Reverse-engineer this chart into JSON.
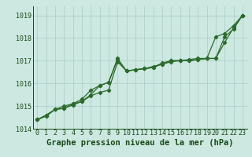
{
  "title": "Graphe pression niveau de la mer (hPa)",
  "x_values": [
    0,
    1,
    2,
    3,
    4,
    5,
    6,
    7,
    8,
    9,
    10,
    11,
    12,
    13,
    14,
    15,
    16,
    17,
    18,
    19,
    20,
    21,
    22,
    23
  ],
  "line1": [
    1014.4,
    1014.55,
    1014.85,
    1014.9,
    1015.05,
    1015.2,
    1015.45,
    1015.6,
    1015.7,
    1016.95,
    1016.55,
    1016.6,
    1016.65,
    1016.75,
    1016.85,
    1017.0,
    1017.0,
    1017.0,
    1017.05,
    1017.1,
    1018.05,
    1018.2,
    1018.55,
    1019.0
  ],
  "line2": [
    1014.4,
    1014.6,
    1014.85,
    1015.0,
    1015.1,
    1015.3,
    1015.7,
    1015.9,
    1016.05,
    1017.05,
    1016.55,
    1016.6,
    1016.65,
    1016.7,
    1016.85,
    1016.95,
    1017.0,
    1017.0,
    1017.05,
    1017.1,
    1017.1,
    1017.8,
    1018.45,
    1019.0
  ],
  "line3": [
    1014.4,
    1014.6,
    1014.85,
    1014.9,
    1015.1,
    1015.2,
    1015.5,
    1015.9,
    1016.05,
    1017.1,
    1016.55,
    1016.6,
    1016.65,
    1016.7,
    1016.9,
    1017.0,
    1017.0,
    1017.05,
    1017.1,
    1017.1,
    1017.1,
    1018.05,
    1018.4,
    1019.0
  ],
  "ylim": [
    1014.0,
    1019.4
  ],
  "yticks": [
    1014,
    1015,
    1016,
    1017,
    1018,
    1019
  ],
  "bg_color": "#cce8e0",
  "grid_color": "#aaccc8",
  "line_color": "#2d6b2d",
  "marker": "D",
  "marker_size": 2.2,
  "linewidth": 0.9,
  "tick_fontsize": 6.0,
  "title_fontsize": 7.5,
  "title_color": "#1a4a1a",
  "tick_color": "#1a4a1a"
}
